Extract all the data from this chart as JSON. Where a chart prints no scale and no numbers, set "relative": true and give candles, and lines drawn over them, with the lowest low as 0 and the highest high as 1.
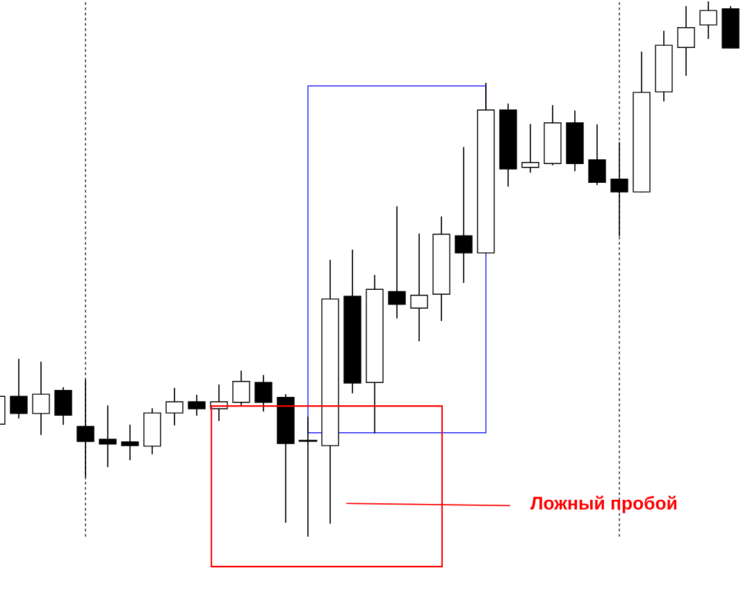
{
  "chart_data": {
    "type": "candlestick",
    "relative": true,
    "categories": [
      null,
      null,
      null,
      null,
      null,
      null,
      null,
      null,
      null,
      null,
      null,
      null,
      null,
      null,
      null,
      null,
      null,
      null,
      null,
      null,
      null,
      null,
      null,
      null,
      null,
      null,
      null,
      null,
      null,
      null,
      null,
      null,
      null,
      null
    ],
    "ohlc": [
      [
        0.21,
        0.262,
        0.21,
        0.262
      ],
      [
        0.262,
        0.331,
        0.222,
        0.23
      ],
      [
        0.23,
        0.326,
        0.191,
        0.266
      ],
      [
        0.273,
        0.278,
        0.21,
        0.227
      ],
      [
        0.206,
        0.292,
        0.112,
        0.178
      ],
      [
        0.182,
        0.244,
        0.131,
        0.173
      ],
      [
        0.177,
        0.208,
        0.144,
        0.17
      ],
      [
        0.169,
        0.239,
        0.155,
        0.231
      ],
      [
        0.231,
        0.277,
        0.209,
        0.252
      ],
      [
        0.252,
        0.264,
        0.227,
        0.239
      ],
      [
        0.239,
        0.283,
        0.217,
        0.252
      ],
      [
        0.251,
        0.309,
        0.244,
        0.29
      ],
      [
        0.288,
        0.301,
        0.235,
        0.251
      ],
      [
        0.26,
        0.265,
        0.027,
        0.174
      ],
      [
        0.179,
        0.223,
        0.0,
        0.179
      ],
      [
        0.17,
        0.516,
        0.025,
        0.444
      ],
      [
        0.449,
        0.535,
        0.269,
        0.287
      ],
      [
        0.288,
        0.488,
        0.194,
        0.462
      ],
      [
        0.458,
        0.616,
        0.409,
        0.434
      ],
      [
        0.427,
        0.565,
        0.366,
        0.451
      ],
      [
        0.453,
        0.597,
        0.404,
        0.565
      ],
      [
        0.562,
        0.727,
        0.475,
        0.53
      ],
      [
        0.53,
        0.847,
        0.53,
        0.797
      ],
      [
        0.797,
        0.808,
        0.655,
        0.687
      ],
      [
        0.69,
        0.77,
        0.681,
        0.699
      ],
      [
        0.697,
        0.805,
        0.695,
        0.773
      ],
      [
        0.773,
        0.795,
        0.684,
        0.697
      ],
      [
        0.704,
        0.769,
        0.658,
        0.662
      ],
      [
        0.668,
        0.736,
        0.562,
        0.644
      ],
      [
        0.644,
        0.905,
        0.644,
        0.83
      ],
      [
        0.831,
        0.944,
        0.814,
        0.918
      ],
      [
        0.914,
        0.99,
        0.862,
        0.951
      ],
      [
        0.956,
        1.0,
        0.931,
        0.983
      ],
      [
        0.986,
        0.99,
        0.913,
        0.913
      ]
    ],
    "annotations": [
      "Ложный пробой"
    ]
  }
}
